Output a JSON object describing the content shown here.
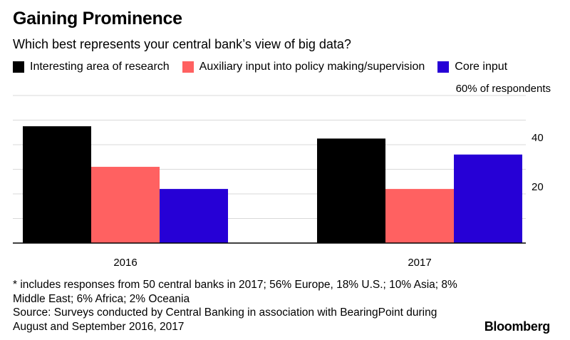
{
  "header": {
    "title": "Gaining Prominence",
    "subtitle": "Which best represents your central bank’s view of big data?"
  },
  "chart_data": {
    "type": "bar",
    "categories": [
      "2016",
      "2017"
    ],
    "series": [
      {
        "name": "Interesting area of research",
        "color": "#000000",
        "values": [
          47.5,
          42.5
        ]
      },
      {
        "name": "Auxiliary input into policy making/supervision",
        "color": "#ff6161",
        "values": [
          31,
          22
        ]
      },
      {
        "name": "Core input",
        "color": "#2600d6",
        "values": [
          22,
          36
        ]
      }
    ],
    "ylim": [
      0,
      60
    ],
    "yticks": [
      20,
      40
    ],
    "ytick_labels": [
      "20",
      "40"
    ],
    "top_label": "60% of respondents",
    "grid": true,
    "legend_position": "top"
  },
  "footnote": {
    "note": "* includes responses from 50 central banks in 2017; 56% Europe, 18% U.S.; 10% Asia; 8% Middle East; 6% Africa; 2% Oceania",
    "source": "Source: Surveys conducted by Central Banking in association with BearingPoint during August and September 2016, 2017"
  },
  "brand": "Bloomberg"
}
